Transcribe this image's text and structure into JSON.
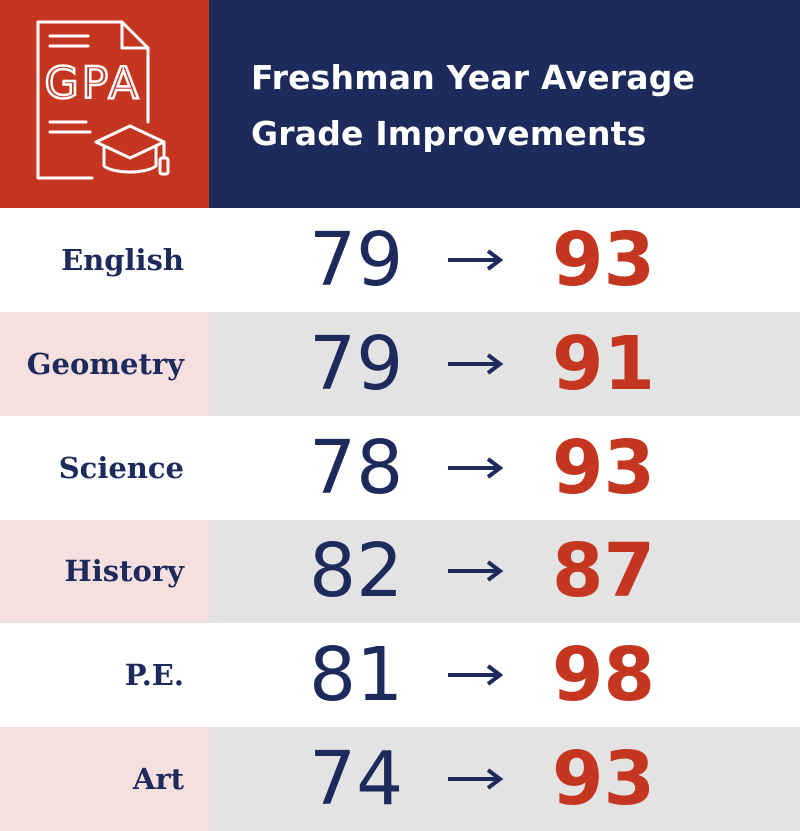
{
  "header": {
    "icon_text": "GPA",
    "title_line1": "Freshman Year Average",
    "title_line2": "Grade Improvements"
  },
  "colors": {
    "brand_red": "#c4361f",
    "brand_navy": "#1c2a5c",
    "alt_row_label": "#f6e0df",
    "alt_row_value": "#e3e3e3"
  },
  "chart_data": {
    "type": "table",
    "title": "Freshman Year Average Grade Improvements",
    "categories": [
      "English",
      "Geometry",
      "Science",
      "History",
      "P.E.",
      "Art"
    ],
    "series": [
      {
        "name": "",
        "values": [
          79,
          79,
          78,
          82,
          81,
          74
        ]
      },
      {
        "name": "",
        "values": [
          93,
          91,
          93,
          87,
          98,
          93
        ]
      }
    ],
    "separator": "→"
  }
}
